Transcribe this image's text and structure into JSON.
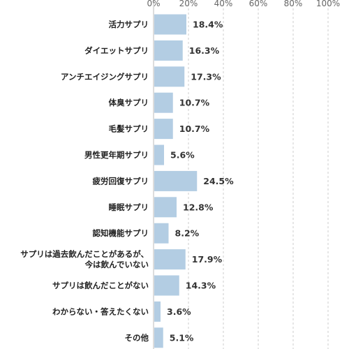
{
  "chart_data": {
    "type": "bar",
    "orientation": "horizontal",
    "categories": [
      [
        "活力サプリ"
      ],
      [
        "ダイエットサプリ"
      ],
      [
        "アンチエイジングサプリ"
      ],
      [
        "体臭サプリ"
      ],
      [
        "毛髪サプリ"
      ],
      [
        "男性更年期サプリ"
      ],
      [
        "疲労回復サプリ"
      ],
      [
        "睡眠サプリ"
      ],
      [
        "認知機能サプリ"
      ],
      [
        "サプリは過去飲んだことがあるが、",
        "今は飲んでいない"
      ],
      [
        "サプリは飲んだことがない"
      ],
      [
        "わからない・答えたくない"
      ],
      [
        "その他"
      ]
    ],
    "values": [
      18.4,
      16.3,
      17.3,
      10.7,
      10.7,
      5.6,
      24.5,
      12.8,
      8.2,
      17.9,
      14.3,
      3.6,
      5.1
    ],
    "value_labels": [
      "18.4%",
      "16.3%",
      "17.3%",
      "10.7%",
      "10.7%",
      "5.6%",
      "24.5%",
      "12.8%",
      "8.2%",
      "17.9%",
      "14.3%",
      "3.6%",
      "5.1%"
    ],
    "xlim": [
      0,
      100
    ],
    "ticks": [
      0,
      20,
      40,
      60,
      80,
      100
    ],
    "tick_labels": [
      "0%",
      "20%",
      "40%",
      "60%",
      "80%",
      "100%"
    ],
    "title": "",
    "xlabel": "",
    "ylabel": "",
    "grid": true,
    "legend": "none",
    "bar_color": "#b3cde3",
    "grid_color": "#cccccc"
  }
}
